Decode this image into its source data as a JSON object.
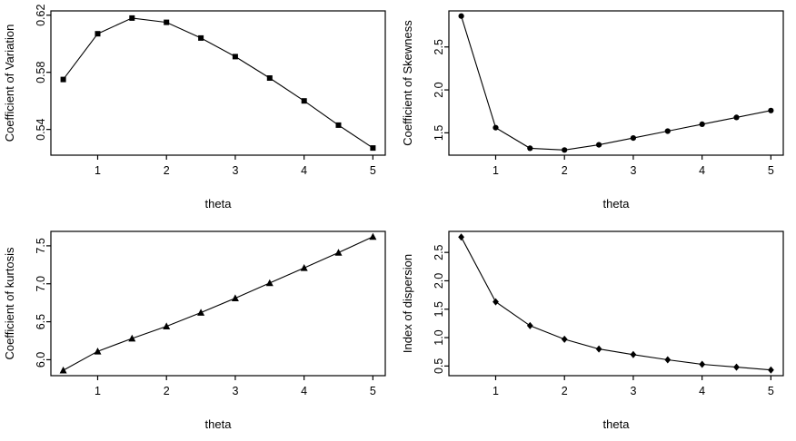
{
  "page": {
    "background": "#ffffff",
    "foreground": "#000000"
  },
  "chart_data": [
    {
      "type": "line",
      "title": "",
      "xlabel": "theta",
      "ylabel": "Coefficient of Variation",
      "marker": "square",
      "line_color": "#000000",
      "marker_color": "#000000",
      "x": [
        0.5,
        1,
        1.5,
        2,
        2.5,
        3,
        3.5,
        4,
        4.5,
        5
      ],
      "values": [
        0.575,
        0.607,
        0.618,
        0.615,
        0.604,
        0.591,
        0.576,
        0.56,
        0.543,
        0.527
      ],
      "xlim": [
        0.32,
        5.18
      ],
      "ylim": [
        0.522,
        0.623
      ],
      "xticks": [
        1,
        2,
        3,
        4,
        5
      ],
      "xtick_labels": [
        "1",
        "2",
        "3",
        "4",
        "5"
      ],
      "yticks": [
        0.54,
        0.58,
        0.62
      ],
      "ytick_labels": [
        "0.54",
        "0.58",
        "0.62"
      ],
      "grid": false,
      "legend": "none"
    },
    {
      "type": "line",
      "title": "",
      "xlabel": "theta",
      "ylabel": "Coefficient of Skewness",
      "marker": "circle",
      "line_color": "#000000",
      "marker_color": "#000000",
      "x": [
        0.5,
        1,
        1.5,
        2,
        2.5,
        3,
        3.5,
        4,
        4.5,
        5
      ],
      "values": [
        2.86,
        1.56,
        1.32,
        1.3,
        1.36,
        1.44,
        1.52,
        1.6,
        1.68,
        1.76
      ],
      "xlim": [
        0.32,
        5.18
      ],
      "ylim": [
        1.24,
        2.92
      ],
      "xticks": [
        1,
        2,
        3,
        4,
        5
      ],
      "xtick_labels": [
        "1",
        "2",
        "3",
        "4",
        "5"
      ],
      "yticks": [
        1.5,
        2.0,
        2.5
      ],
      "ytick_labels": [
        "1.5",
        "2.0",
        "2.5"
      ],
      "grid": false,
      "legend": "none"
    },
    {
      "type": "line",
      "title": "",
      "xlabel": "theta",
      "ylabel": "Coefficient of kurtosis",
      "marker": "triangle",
      "line_color": "#000000",
      "marker_color": "#000000",
      "x": [
        0.5,
        1,
        1.5,
        2,
        2.5,
        3,
        3.5,
        4,
        4.5,
        5
      ],
      "values": [
        5.86,
        6.11,
        6.28,
        6.44,
        6.62,
        6.81,
        7.01,
        7.21,
        7.41,
        7.62
      ],
      "xlim": [
        0.32,
        5.18
      ],
      "ylim": [
        5.79,
        7.69
      ],
      "xticks": [
        1,
        2,
        3,
        4,
        5
      ],
      "xtick_labels": [
        "1",
        "2",
        "3",
        "4",
        "5"
      ],
      "yticks": [
        6.0,
        6.5,
        7.0,
        7.5
      ],
      "ytick_labels": [
        "6.0",
        "6.5",
        "7.0",
        "7.5"
      ],
      "grid": false,
      "legend": "none"
    },
    {
      "type": "line",
      "title": "",
      "xlabel": "theta",
      "ylabel": "Index of dispersion",
      "marker": "diamond",
      "line_color": "#000000",
      "marker_color": "#000000",
      "x": [
        0.5,
        1,
        1.5,
        2,
        2.5,
        3,
        3.5,
        4,
        4.5,
        5
      ],
      "values": [
        2.77,
        1.63,
        1.21,
        0.97,
        0.8,
        0.7,
        0.61,
        0.53,
        0.48,
        0.43
      ],
      "xlim": [
        0.32,
        5.18
      ],
      "ylim": [
        0.33,
        2.87
      ],
      "xticks": [
        1,
        2,
        3,
        4,
        5
      ],
      "xtick_labels": [
        "1",
        "2",
        "3",
        "4",
        "5"
      ],
      "yticks": [
        0.5,
        1.0,
        1.5,
        2.0,
        2.5
      ],
      "ytick_labels": [
        "0.5",
        "1.0",
        "1.5",
        "2.0",
        "2.5"
      ],
      "grid": false,
      "legend": "none"
    }
  ]
}
